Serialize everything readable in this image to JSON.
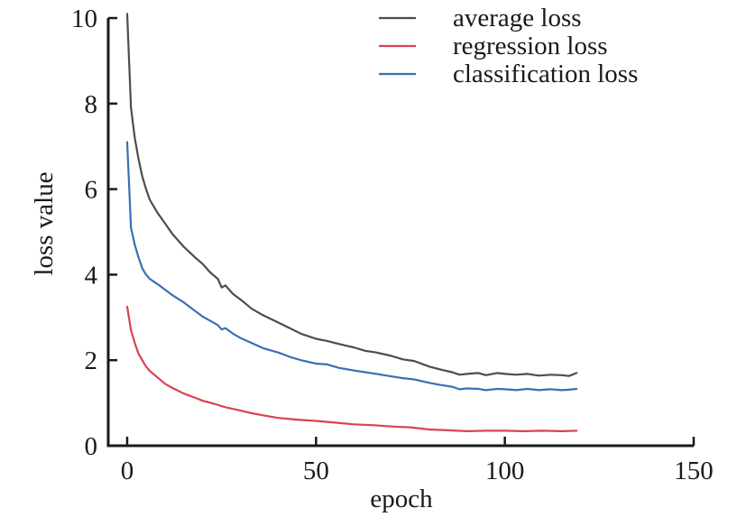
{
  "chart_data": {
    "type": "line",
    "title": "",
    "xlabel": "epoch",
    "ylabel": "loss value",
    "xlim": [
      0,
      150
    ],
    "ylim": [
      0,
      10
    ],
    "xticks": [
      0,
      50,
      100,
      150
    ],
    "yticks": [
      0,
      2,
      4,
      6,
      8,
      10
    ],
    "xtick_labels": [
      "0",
      "50",
      "100",
      "150"
    ],
    "ytick_labels": [
      "0",
      "2",
      "4",
      "6",
      "8",
      "10"
    ],
    "grid": false,
    "legend_position": "top-right",
    "series": [
      {
        "name": "average loss",
        "color": "#4d4d4d",
        "x": [
          0,
          1,
          2,
          3,
          4,
          5,
          6,
          8,
          10,
          12,
          15,
          18,
          20,
          22,
          24,
          25,
          26,
          28,
          30,
          33,
          36,
          40,
          43,
          46,
          50,
          53,
          56,
          60,
          63,
          66,
          70,
          73,
          76,
          80,
          83,
          86,
          88,
          90,
          93,
          95,
          98,
          100,
          103,
          106,
          109,
          112,
          115,
          117,
          119
        ],
        "values": [
          10.1,
          7.9,
          7.2,
          6.7,
          6.3,
          6.0,
          5.75,
          5.45,
          5.2,
          4.95,
          4.65,
          4.4,
          4.25,
          4.05,
          3.9,
          3.7,
          3.75,
          3.55,
          3.42,
          3.2,
          3.05,
          2.88,
          2.75,
          2.62,
          2.5,
          2.45,
          2.38,
          2.3,
          2.22,
          2.18,
          2.1,
          2.02,
          1.98,
          1.85,
          1.78,
          1.72,
          1.66,
          1.68,
          1.7,
          1.65,
          1.7,
          1.68,
          1.66,
          1.68,
          1.64,
          1.66,
          1.65,
          1.63,
          1.7
        ]
      },
      {
        "name": "regression loss",
        "color": "#d9434f",
        "x": [
          0,
          1,
          2,
          3,
          4,
          5,
          6,
          8,
          10,
          12,
          15,
          18,
          20,
          23,
          26,
          30,
          33,
          36,
          40,
          45,
          50,
          55,
          60,
          65,
          70,
          75,
          80,
          85,
          90,
          95,
          100,
          105,
          110,
          115,
          119
        ],
        "values": [
          3.25,
          2.7,
          2.4,
          2.15,
          2.0,
          1.85,
          1.75,
          1.6,
          1.45,
          1.35,
          1.22,
          1.12,
          1.05,
          0.98,
          0.9,
          0.82,
          0.76,
          0.71,
          0.65,
          0.61,
          0.58,
          0.54,
          0.5,
          0.48,
          0.45,
          0.43,
          0.38,
          0.36,
          0.34,
          0.35,
          0.35,
          0.34,
          0.35,
          0.34,
          0.35
        ]
      },
      {
        "name": "classification loss",
        "color": "#3a6fb5",
        "x": [
          0,
          1,
          2,
          3,
          4,
          5,
          6,
          8,
          10,
          12,
          15,
          18,
          20,
          22,
          24,
          25,
          26,
          28,
          30,
          33,
          36,
          40,
          43,
          46,
          50,
          53,
          56,
          60,
          63,
          66,
          70,
          73,
          76,
          80,
          83,
          86,
          88,
          90,
          93,
          95,
          98,
          100,
          103,
          106,
          109,
          112,
          115,
          117,
          119
        ],
        "values": [
          7.1,
          5.1,
          4.7,
          4.4,
          4.15,
          4.0,
          3.9,
          3.78,
          3.65,
          3.52,
          3.35,
          3.15,
          3.02,
          2.92,
          2.82,
          2.72,
          2.75,
          2.62,
          2.52,
          2.4,
          2.28,
          2.18,
          2.08,
          2.0,
          1.92,
          1.9,
          1.82,
          1.76,
          1.72,
          1.68,
          1.62,
          1.58,
          1.55,
          1.47,
          1.42,
          1.38,
          1.32,
          1.34,
          1.33,
          1.3,
          1.33,
          1.32,
          1.3,
          1.33,
          1.3,
          1.32,
          1.3,
          1.31,
          1.33
        ]
      }
    ]
  }
}
